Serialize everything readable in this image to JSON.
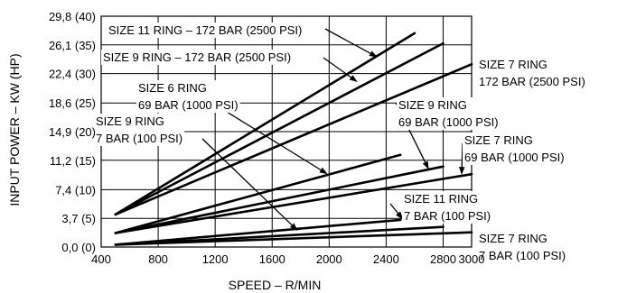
{
  "chart_data": {
    "type": "line",
    "title": "",
    "xlabel": "SPEED – R/MIN",
    "ylabel": "INPUT POWER – KW (HP)",
    "xlim": [
      400,
      3000
    ],
    "ylim": [
      0,
      29.8
    ],
    "x_ticks": [
      400,
      800,
      1200,
      1600,
      2000,
      2400,
      2800,
      3000
    ],
    "x_tick_labels": [
      "400",
      "800",
      "1200",
      "1600",
      "2000",
      "2400",
      "2800",
      "3000"
    ],
    "y_ticks": [
      0,
      3.7,
      7.4,
      11.2,
      14.9,
      18.6,
      22.4,
      26.1,
      29.8
    ],
    "y_tick_labels": [
      "0,0 (0)",
      "3,7 (5)",
      "7,4 (10)",
      "11,2 (15)",
      "14,9 (20)",
      "18,6 (25)",
      "22,4 (30)",
      "26,1 (35)",
      "29,8 (40)"
    ],
    "grid": true,
    "series": [
      {
        "name": "SIZE 11 RING – 172 BAR (2500 PSI)",
        "x": [
          500,
          2600
        ],
        "y": [
          4.2,
          27.6
        ]
      },
      {
        "name": "SIZE 9 RING – 172 BAR (2500 PSI)",
        "x": [
          500,
          2800
        ],
        "y": [
          4.2,
          26.3
        ]
      },
      {
        "name": "SIZE 7 RING 172 BAR (2500 PSI)",
        "x": [
          500,
          3000
        ],
        "y": [
          4.2,
          23.6
        ]
      },
      {
        "name": "SIZE 6 RING 69 BAR (1000 PSI)",
        "x": [
          500,
          2500
        ],
        "y": [
          1.8,
          11.9
        ]
      },
      {
        "name": "SIZE 9 RING 69 BAR (1000 PSI)",
        "x": [
          500,
          2800
        ],
        "y": [
          1.8,
          10.4
        ]
      },
      {
        "name": "SIZE 7 RING 69 BAR (1000 PSI)",
        "x": [
          500,
          3000
        ],
        "y": [
          1.8,
          9.4
        ]
      },
      {
        "name": "SIZE 11 RING 7 BAR (100 PSI)",
        "x": [
          500,
          2500
        ],
        "y": [
          0.3,
          3.5
        ]
      },
      {
        "name": "SIZE 9 RING 7 BAR (100 PSI)",
        "x": [
          500,
          2800
        ],
        "y": [
          0.3,
          2.6
        ]
      },
      {
        "name": "SIZE 7 RING 7 BAR (100 PSI)",
        "x": [
          500,
          3000
        ],
        "y": [
          0.3,
          1.9
        ]
      }
    ],
    "annotations": [
      {
        "name": "label-size11-172",
        "lines": [
          "SIZE 11 RING – 172 BAR (2500 PSI)"
        ],
        "target": [
          2340,
          24.5
        ]
      },
      {
        "name": "label-size9-172",
        "lines": [
          "SIZE 9 RING – 172 BAR (2500 PSI)"
        ],
        "target": [
          2200,
          21.3
        ]
      },
      {
        "name": "label-size7-172",
        "lines": [
          "SIZE 7 RING",
          "172 BAR (2500 PSI)"
        ]
      },
      {
        "name": "label-size6-69",
        "lines": [
          "SIZE 6 RING",
          "69 BAR (1000 PSI)"
        ],
        "target": [
          1990,
          9.4
        ]
      },
      {
        "name": "label-size9-69",
        "lines": [
          "SIZE 9 RING",
          "69 BAR (1000 PSI)"
        ],
        "target": [
          2700,
          10.0
        ]
      },
      {
        "name": "label-size7-69",
        "lines": [
          "SIZE 7 RING",
          "69 BAR (1000 PSI)"
        ],
        "target": [
          2930,
          9.3
        ]
      },
      {
        "name": "label-size11-7",
        "lines": [
          "SIZE 11 RING",
          "7 BAR (100 PSI)"
        ],
        "target": [
          2520,
          3.55
        ]
      },
      {
        "name": "label-size9-7",
        "lines": [
          "SIZE 9 RING",
          "7 BAR (100 PSI)"
        ],
        "target": [
          1780,
          2.1
        ]
      },
      {
        "name": "label-size7-7",
        "lines": [
          "SIZE 7 RING",
          "7 BAR (100 PSI)"
        ]
      }
    ]
  }
}
